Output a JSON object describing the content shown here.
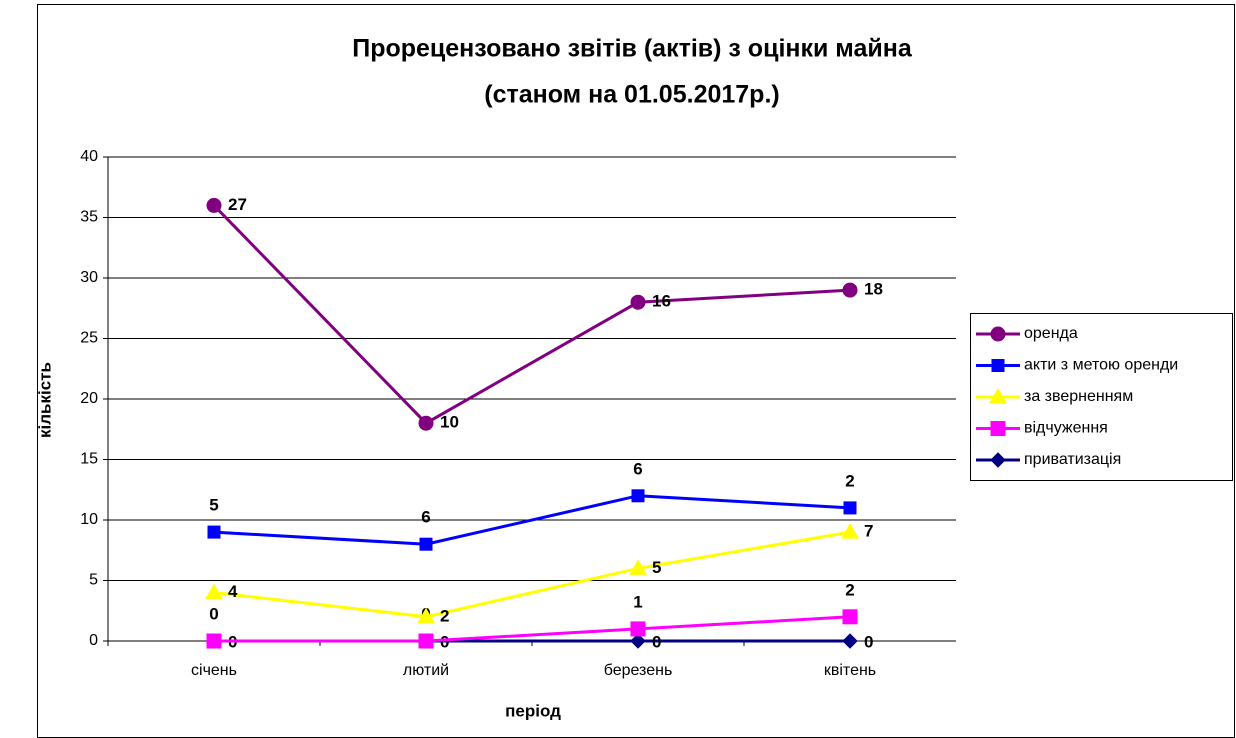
{
  "chart_data": {
    "type": "line",
    "stacked": true,
    "title": [
      "Прорецензовано звітів (актів) з оцінки майна",
      "(станом на 01.05.2017р.)"
    ],
    "xlabel": "період",
    "ylabel": "кількість",
    "categories": [
      "січень",
      "лютий",
      "березень",
      "квітень"
    ],
    "series": [
      {
        "name": "оренда",
        "color": "#800080",
        "marker": "circle",
        "values": [
          27,
          10,
          16,
          18
        ]
      },
      {
        "name": "акти з метою оренди",
        "color": "#0000ff",
        "marker": "square",
        "values": [
          5,
          6,
          6,
          2
        ]
      },
      {
        "name": "за зверненням",
        "color": "#ffff00",
        "marker": "triangle",
        "values": [
          4,
          2,
          5,
          7
        ]
      },
      {
        "name": "відчуження",
        "color": "#ff00ff",
        "marker": "square",
        "values": [
          0,
          0,
          1,
          2
        ]
      },
      {
        "name": "приватизація",
        "color": "#000080",
        "marker": "diamond",
        "values": [
          0,
          0,
          0,
          0
        ]
      }
    ],
    "ylim": [
      0,
      40
    ],
    "yticks": [
      0,
      5,
      10,
      15,
      20,
      25,
      30,
      35,
      40
    ],
    "grid": true,
    "legend": "right"
  }
}
